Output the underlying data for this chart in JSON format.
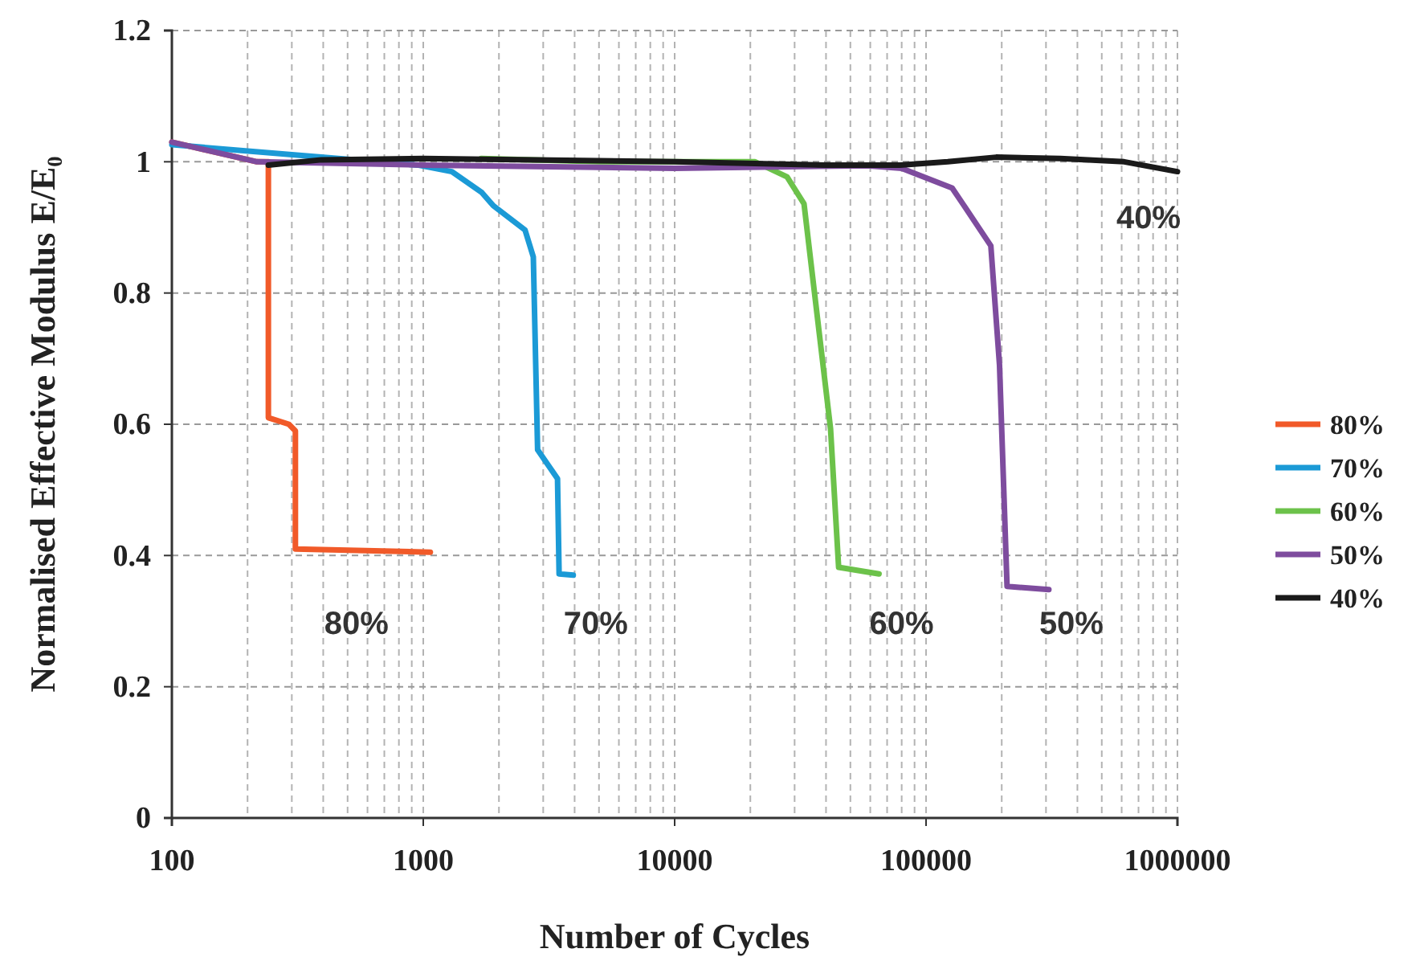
{
  "chart_data": {
    "type": "line",
    "xlabel": "Number of Cycles",
    "ylabel": "Normalised Effective Modulus E/E₀",
    "log": "x",
    "grid": true,
    "legend": "right",
    "marker": "none",
    "xlim": [
      100,
      1000000
    ],
    "xticks": [
      100,
      1000,
      10000,
      100000,
      1000000
    ],
    "ylim": [
      0,
      1.2
    ],
    "yticks": [
      0,
      0.2,
      0.4,
      0.6,
      0.8,
      1,
      1.2
    ],
    "series": [
      {
        "name": "80%",
        "color": "#f15a29",
        "x": [
          100,
          218,
          242,
          242,
          292,
          310,
          310,
          1067
        ],
        "values": [
          1.03,
          1.0,
          1.0,
          0.61,
          0.6,
          0.59,
          0.41,
          0.405
        ]
      },
      {
        "name": "70%",
        "color": "#1b9ad6",
        "x": [
          100,
          950,
          1300,
          1711,
          1900,
          2540,
          2740,
          2850,
          3420,
          3470,
          3950
        ],
        "values": [
          1.026,
          0.995,
          0.985,
          0.953,
          0.933,
          0.896,
          0.855,
          0.561,
          0.517,
          0.372,
          0.37
        ]
      },
      {
        "name": "60%",
        "color": "#6cc24a",
        "x": [
          1700,
          5000,
          20900,
          28000,
          32700,
          36000,
          41700,
          44900,
          65000
        ],
        "values": [
          1.005,
          1.0,
          1.0,
          0.977,
          0.936,
          0.8,
          0.593,
          0.382,
          0.372
        ]
      },
      {
        "name": "50%",
        "color": "#7e4c9e",
        "x": [
          100,
          218,
          1000,
          10000,
          58500,
          80000,
          127000,
          140000,
          181000,
          196000,
          210000,
          308000
        ],
        "values": [
          1.03,
          1.0,
          0.995,
          0.99,
          0.994,
          0.99,
          0.96,
          0.936,
          0.872,
          0.69,
          0.353,
          0.348
        ]
      },
      {
        "name": "40%",
        "color": "#1a1a1a",
        "x": [
          242,
          393,
          1000,
          10000,
          40000,
          78700,
          122000,
          190000,
          342000,
          614000,
          1000000
        ],
        "values": [
          0.995,
          1.003,
          1.005,
          1.0,
          0.995,
          0.995,
          1.0,
          1.007,
          1.005,
          1.0,
          0.985
        ]
      }
    ],
    "annotations": [
      "80%",
      "70%",
      "60%",
      "50%",
      "40%"
    ]
  }
}
